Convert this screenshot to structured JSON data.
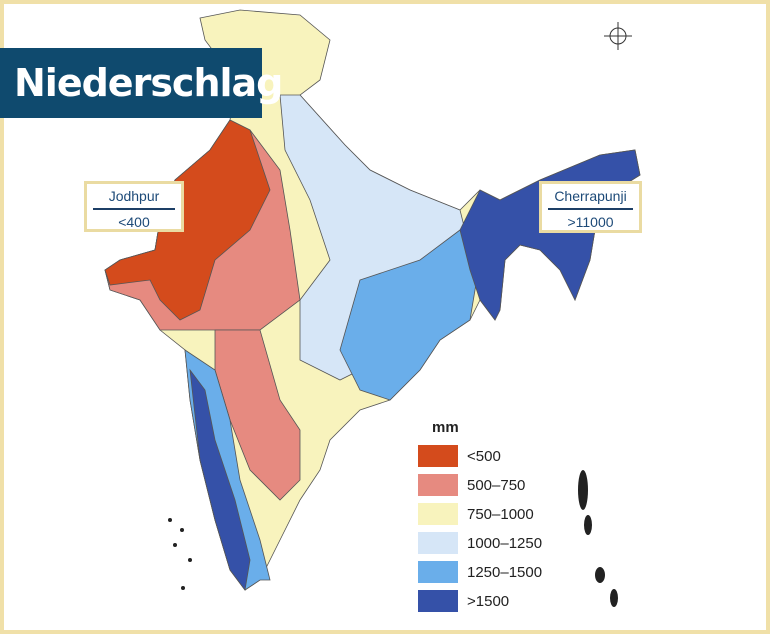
{
  "title": "Niederschlag",
  "callouts": [
    {
      "name": "Jodhpur",
      "value": "<400"
    },
    {
      "name": "Cherrapunji",
      "value": ">11000"
    }
  ],
  "legend": {
    "title": "mm",
    "items": [
      {
        "label": "<500",
        "color": "#d44b1c"
      },
      {
        "label": "500–750",
        "color": "#e68a80"
      },
      {
        "label": "750–1000",
        "color": "#f8f3bd"
      },
      {
        "label": "1000–1250",
        "color": "#d6e6f7"
      },
      {
        "label": "1250–1500",
        "color": "#6aaeea"
      },
      {
        "label": ">1500",
        "color": "#3551a8"
      }
    ]
  }
}
